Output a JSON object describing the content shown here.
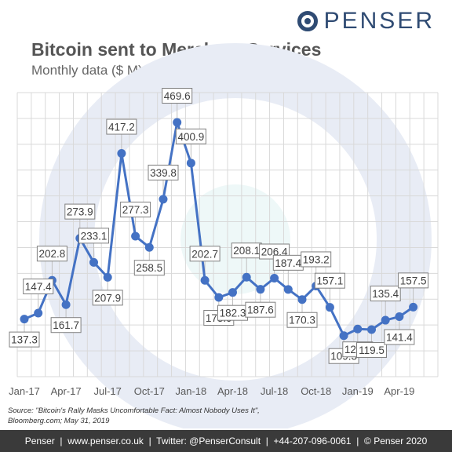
{
  "brand": {
    "logo_text": "PENSER"
  },
  "chart_data": {
    "type": "line",
    "title": "Bitcoin sent to Merchant Services",
    "subtitle": "Monthly data ($ M)",
    "x_tick_labels": [
      "Jan-17",
      "Apr-17",
      "Jul-17",
      "Oct-17",
      "Jan-18",
      "Apr-18",
      "Jul-18",
      "Oct-18",
      "Jan-19",
      "Apr-19"
    ],
    "x": [
      "Jan-17",
      "Feb-17",
      "Mar-17",
      "Apr-17",
      "May-17",
      "Jun-17",
      "Jul-17",
      "Aug-17",
      "Sep-17",
      "Oct-17",
      "Nov-17",
      "Dec-17",
      "Jan-18",
      "Feb-18",
      "Mar-18",
      "Apr-18",
      "May-18",
      "Jun-18",
      "Jul-18",
      "Aug-18",
      "Sep-18",
      "Oct-18",
      "Nov-18",
      "Dec-18",
      "Jan-19",
      "Feb-19",
      "Mar-19",
      "Apr-19",
      "May-19"
    ],
    "values": [
      137.3,
      147.4,
      202.8,
      161.7,
      273.9,
      233.1,
      207.9,
      417.2,
      277.3,
      258.5,
      339.8,
      469.6,
      400.9,
      202.7,
      173.9,
      182.3,
      208.1,
      187.6,
      206.4,
      187.4,
      170.3,
      193.2,
      157.1,
      109.3,
      120.6,
      119.5,
      135.4,
      141.4,
      157.5
    ],
    "ylim": [
      40,
      520
    ],
    "grid": true,
    "series_color": "#4472c4",
    "data_labels": [
      {
        "i": 0,
        "text": "137.3",
        "pos": "below"
      },
      {
        "i": 1,
        "text": "147.4",
        "pos": "above"
      },
      {
        "i": 2,
        "text": "202.8",
        "pos": "above"
      },
      {
        "i": 3,
        "text": "161.7",
        "pos": "below"
      },
      {
        "i": 4,
        "text": "273.9",
        "pos": "above"
      },
      {
        "i": 5,
        "text": "233.1",
        "pos": "above"
      },
      {
        "i": 6,
        "text": "207.9",
        "pos": "below"
      },
      {
        "i": 7,
        "text": "417.2",
        "pos": "above"
      },
      {
        "i": 8,
        "text": "277.3",
        "pos": "above"
      },
      {
        "i": 9,
        "text": "258.5",
        "pos": "below"
      },
      {
        "i": 10,
        "text": "339.8",
        "pos": "above"
      },
      {
        "i": 11,
        "text": "469.6",
        "pos": "above"
      },
      {
        "i": 12,
        "text": "400.9",
        "pos": "above"
      },
      {
        "i": 13,
        "text": "202.7",
        "pos": "above"
      },
      {
        "i": 14,
        "text": "173.9",
        "pos": "below"
      },
      {
        "i": 15,
        "text": "182.3",
        "pos": "below"
      },
      {
        "i": 16,
        "text": "208.1",
        "pos": "above"
      },
      {
        "i": 17,
        "text": "187.6",
        "pos": "below"
      },
      {
        "i": 18,
        "text": "206.4",
        "pos": "above"
      },
      {
        "i": 19,
        "text": "187.4",
        "pos": "above"
      },
      {
        "i": 20,
        "text": "170.3",
        "pos": "below"
      },
      {
        "i": 21,
        "text": "193.2",
        "pos": "above"
      },
      {
        "i": 22,
        "text": "157.1",
        "pos": "above"
      },
      {
        "i": 23,
        "text": "109.3",
        "pos": "below"
      },
      {
        "i": 24,
        "text": "120.6",
        "pos": "below"
      },
      {
        "i": 25,
        "text": "119.5",
        "pos": "below"
      },
      {
        "i": 26,
        "text": "135.4",
        "pos": "above"
      },
      {
        "i": 27,
        "text": "141.4",
        "pos": "below"
      },
      {
        "i": 28,
        "text": "157.5",
        "pos": "above"
      }
    ]
  },
  "source": {
    "line1": "Source: \"Bitcoin's Rally Masks Uncomfortable Fact: Almost Nobody Uses It\",",
    "line2": "Bloomberg.com; May 31, 2019"
  },
  "footer": {
    "text": "Penser  |  www.penser.co.uk  |  Twitter: @PenserConsult  |  +44-207-096-0061  |  © Penser 2020"
  }
}
